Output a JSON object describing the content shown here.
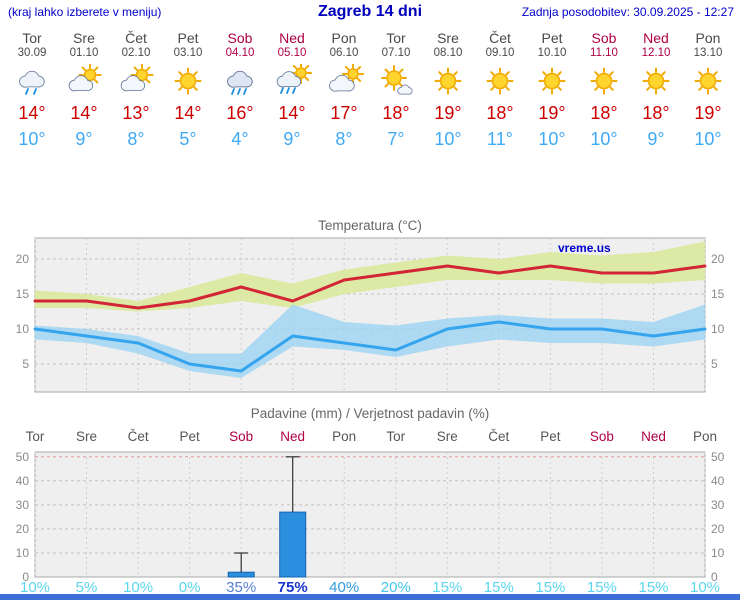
{
  "header": {
    "left_note": "(kraj lahko izberete v meniju)",
    "title": "Zagreb 14 dni",
    "updated": "Zadnja posodobitev: 30.09.2025 - 12:27"
  },
  "colors": {
    "header_blue": "#0000cc",
    "weekend_red": "#b00045",
    "tmax_red": "#cc0000",
    "tmin_blue": "#3fa9f5",
    "plot_bg": "#efefef",
    "footer_blue": "#3e6fd8"
  },
  "days": [
    {
      "name": "Tor",
      "date": "30.09",
      "weekend": false,
      "icon": "rain-cloud-icon",
      "icon_type": "light-rain",
      "tmax": "14",
      "tmin": "10"
    },
    {
      "name": "Sre",
      "date": "01.10",
      "weekend": false,
      "icon": "sun-cloud-icon",
      "icon_type": "partly-cloudy",
      "tmax": "14",
      "tmin": "9"
    },
    {
      "name": "Čet",
      "date": "02.10",
      "weekend": false,
      "icon": "sun-cloud-icon",
      "icon_type": "partly-cloudy",
      "tmax": "13",
      "tmin": "8"
    },
    {
      "name": "Pet",
      "date": "03.10",
      "weekend": false,
      "icon": "sun-icon",
      "icon_type": "sunny",
      "tmax": "14",
      "tmin": "5"
    },
    {
      "name": "Sob",
      "date": "04.10",
      "weekend": true,
      "icon": "rain-icon",
      "icon_type": "rain",
      "tmax": "16",
      "tmin": "4"
    },
    {
      "name": "Ned",
      "date": "05.10",
      "weekend": true,
      "icon": "sun-rain-icon",
      "icon_type": "sun-rain",
      "tmax": "14",
      "tmin": "9"
    },
    {
      "name": "Pon",
      "date": "06.10",
      "weekend": false,
      "icon": "cloud-sun-icon",
      "icon_type": "mostly-cloudy",
      "tmax": "17",
      "tmin": "8"
    },
    {
      "name": "Tor",
      "date": "07.10",
      "weekend": false,
      "icon": "sun-small-cloud-icon",
      "icon_type": "mostly-sunny",
      "tmax": "18",
      "tmin": "7"
    },
    {
      "name": "Sre",
      "date": "08.10",
      "weekend": false,
      "icon": "sun-icon",
      "icon_type": "sunny",
      "tmax": "19",
      "tmin": "10"
    },
    {
      "name": "Čet",
      "date": "09.10",
      "weekend": false,
      "icon": "sun-icon",
      "icon_type": "sunny",
      "tmax": "18",
      "tmin": "11"
    },
    {
      "name": "Pet",
      "date": "10.10",
      "weekend": false,
      "icon": "sun-icon",
      "icon_type": "sunny",
      "tmax": "19",
      "tmin": "10"
    },
    {
      "name": "Sob",
      "date": "11.10",
      "weekend": true,
      "icon": "sun-icon",
      "icon_type": "sunny",
      "tmax": "18",
      "tmin": "10"
    },
    {
      "name": "Ned",
      "date": "12.10",
      "weekend": true,
      "icon": "sun-icon",
      "icon_type": "sunny",
      "tmax": "18",
      "tmin": "9"
    },
    {
      "name": "Pon",
      "date": "13.10",
      "weekend": false,
      "icon": "sun-icon",
      "icon_type": "sunny",
      "tmax": "19",
      "tmin": "10"
    }
  ],
  "chart_data": [
    {
      "type": "line",
      "title": "Temperatura (°C)",
      "x_labels": [
        "Tor",
        "Sre",
        "Čet",
        "Pet",
        "Sob",
        "Ned",
        "Pon",
        "Tor",
        "Sre",
        "Čet",
        "Pet",
        "Sob",
        "Ned",
        "Pon"
      ],
      "yticks": [
        5,
        10,
        15,
        20
      ],
      "ylim": [
        1,
        23
      ],
      "grid": true,
      "watermark": "vreme.us",
      "band_colors": {
        "tmax": "#d9e99c",
        "tmin": "#9ed3f3"
      },
      "series": [
        {
          "name": "tmax",
          "color": "#d22535",
          "values": [
            14,
            14,
            13,
            14,
            16,
            14,
            17,
            18,
            19,
            18,
            19,
            18,
            18,
            19
          ]
        },
        {
          "name": "tmin",
          "color": "#35a4ee",
          "values": [
            10,
            9,
            8,
            5,
            4,
            9,
            8,
            7,
            10,
            11,
            10,
            10,
            9,
            10
          ]
        },
        {
          "name": "tmax_range_upper",
          "values": [
            15.5,
            15,
            14,
            16,
            18,
            16.5,
            18.5,
            19.5,
            20.5,
            20,
            21,
            20.5,
            21,
            22.5
          ]
        },
        {
          "name": "tmax_range_lower",
          "values": [
            13,
            13,
            12.5,
            13,
            14,
            13,
            15,
            16,
            17,
            17,
            17,
            16.5,
            16.5,
            17
          ]
        },
        {
          "name": "tmin_range_upper",
          "values": [
            10.5,
            10,
            9,
            6.5,
            6.5,
            13.5,
            11,
            10.5,
            11.5,
            12,
            11.5,
            11.5,
            11,
            13.5
          ]
        },
        {
          "name": "tmin_range_lower",
          "values": [
            8.5,
            8,
            6.5,
            4,
            3,
            7.5,
            7,
            6,
            7.5,
            8.5,
            8,
            8,
            7.5,
            8.5
          ]
        }
      ]
    },
    {
      "type": "bar",
      "title": "Padavine (mm) / Verjetnost padavin (%)",
      "categories": [
        "Tor",
        "Sre",
        "Čet",
        "Pet",
        "Sob",
        "Ned",
        "Pon",
        "Tor",
        "Sre",
        "Čet",
        "Pet",
        "Sob",
        "Ned",
        "Pon"
      ],
      "values": [
        0,
        0,
        0,
        0,
        2,
        27,
        0,
        0,
        0,
        0,
        0,
        0,
        0,
        0
      ],
      "whisker_max": [
        0,
        0,
        0,
        0,
        10,
        50,
        0,
        0,
        0,
        0,
        0,
        0,
        0,
        0
      ],
      "yticks": [
        0,
        10,
        20,
        30,
        40,
        50
      ],
      "ylim": [
        0,
        52
      ],
      "bar_color": "#2b8ede",
      "pop_labels": [
        {
          "text": "10%",
          "color": "#5bd6ee",
          "bold": false
        },
        {
          "text": "5%",
          "color": "#5bd6ee",
          "bold": false
        },
        {
          "text": "10%",
          "color": "#5bd6ee",
          "bold": false
        },
        {
          "text": "0%",
          "color": "#5bd6ee",
          "bold": false
        },
        {
          "text": "35%",
          "color": "#5a7fd0",
          "bold": false
        },
        {
          "text": "75%",
          "color": "#1b35cc",
          "bold": true
        },
        {
          "text": "40%",
          "color": "#2f9ede",
          "bold": false
        },
        {
          "text": "20%",
          "color": "#45c4e8",
          "bold": false
        },
        {
          "text": "15%",
          "color": "#5bd6ee",
          "bold": false
        },
        {
          "text": "15%",
          "color": "#5bd6ee",
          "bold": false
        },
        {
          "text": "15%",
          "color": "#5bd6ee",
          "bold": false
        },
        {
          "text": "15%",
          "color": "#5bd6ee",
          "bold": false
        },
        {
          "text": "15%",
          "color": "#5bd6ee",
          "bold": false
        },
        {
          "text": "10%",
          "color": "#5bd6ee",
          "bold": false
        }
      ]
    }
  ]
}
